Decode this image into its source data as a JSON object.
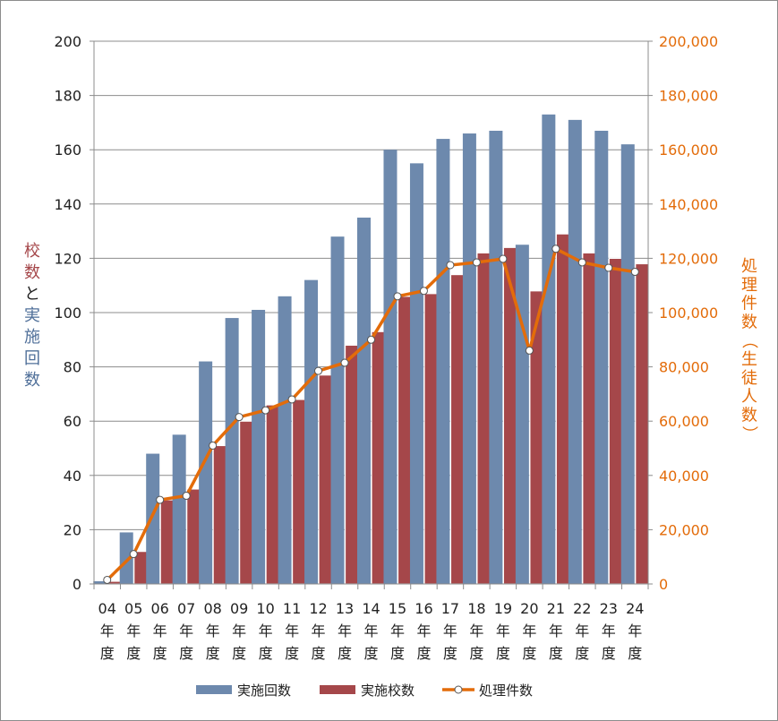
{
  "chart_data": {
    "type": "bar",
    "categories": [
      "04",
      "05",
      "06",
      "07",
      "08",
      "09",
      "10",
      "11",
      "12",
      "13",
      "14",
      "15",
      "16",
      "17",
      "18",
      "19",
      "20",
      "21",
      "22",
      "23",
      "24"
    ],
    "category_suffix": [
      "年",
      "度"
    ],
    "series": [
      {
        "name": "実施回数",
        "type": "bar",
        "axis": "left",
        "color": "#6d89ad",
        "values": [
          1,
          19,
          48,
          55,
          82,
          98,
          101,
          106,
          112,
          128,
          135,
          160,
          155,
          164,
          166,
          167,
          125,
          173,
          171,
          167,
          162
        ]
      },
      {
        "name": "実施校数",
        "type": "bar",
        "axis": "left",
        "color": "#a5474a",
        "values": [
          1,
          12,
          31,
          35,
          51,
          60,
          66,
          68,
          77,
          88,
          93,
          106,
          107,
          114,
          122,
          124,
          108,
          129,
          122,
          120,
          118
        ]
      },
      {
        "name": "処理件数",
        "type": "line",
        "axis": "right",
        "color": "#e36c0a",
        "values": [
          1500,
          11000,
          31000,
          32500,
          51000,
          61500,
          64000,
          68000,
          78500,
          81500,
          90000,
          106000,
          108000,
          117500,
          118500,
          119800,
          86000,
          123500,
          118500,
          116500,
          115000
        ]
      }
    ],
    "y_left": {
      "min": 0,
      "max": 200,
      "step": 20,
      "ticks": [
        "0",
        "20",
        "40",
        "60",
        "80",
        "100",
        "120",
        "140",
        "160",
        "180",
        "200"
      ]
    },
    "y_right": {
      "min": 0,
      "max": 200000,
      "step": 20000,
      "ticks": [
        "0",
        "20,000",
        "40,000",
        "60,000",
        "80,000",
        "100,000",
        "120,000",
        "140,000",
        "160,000",
        "180,000",
        "200,000"
      ]
    },
    "y_left_label": [
      {
        "char": "校",
        "color": "#a5474a"
      },
      {
        "char": "数",
        "color": "#a5474a"
      },
      {
        "char": "と",
        "color": "#222222"
      },
      {
        "char": "実",
        "color": "#4f6f99"
      },
      {
        "char": "施",
        "color": "#4f6f99"
      },
      {
        "char": "回",
        "color": "#4f6f99"
      },
      {
        "char": "数",
        "color": "#4f6f99"
      }
    ],
    "y_right_label": [
      "処",
      "理",
      "件",
      "数",
      "（",
      "生",
      "徒",
      "人",
      "数",
      "）"
    ],
    "legend": {
      "position": "bottom",
      "items": [
        "実施回数",
        "実施校数",
        "処理件数"
      ]
    },
    "grid": true
  }
}
